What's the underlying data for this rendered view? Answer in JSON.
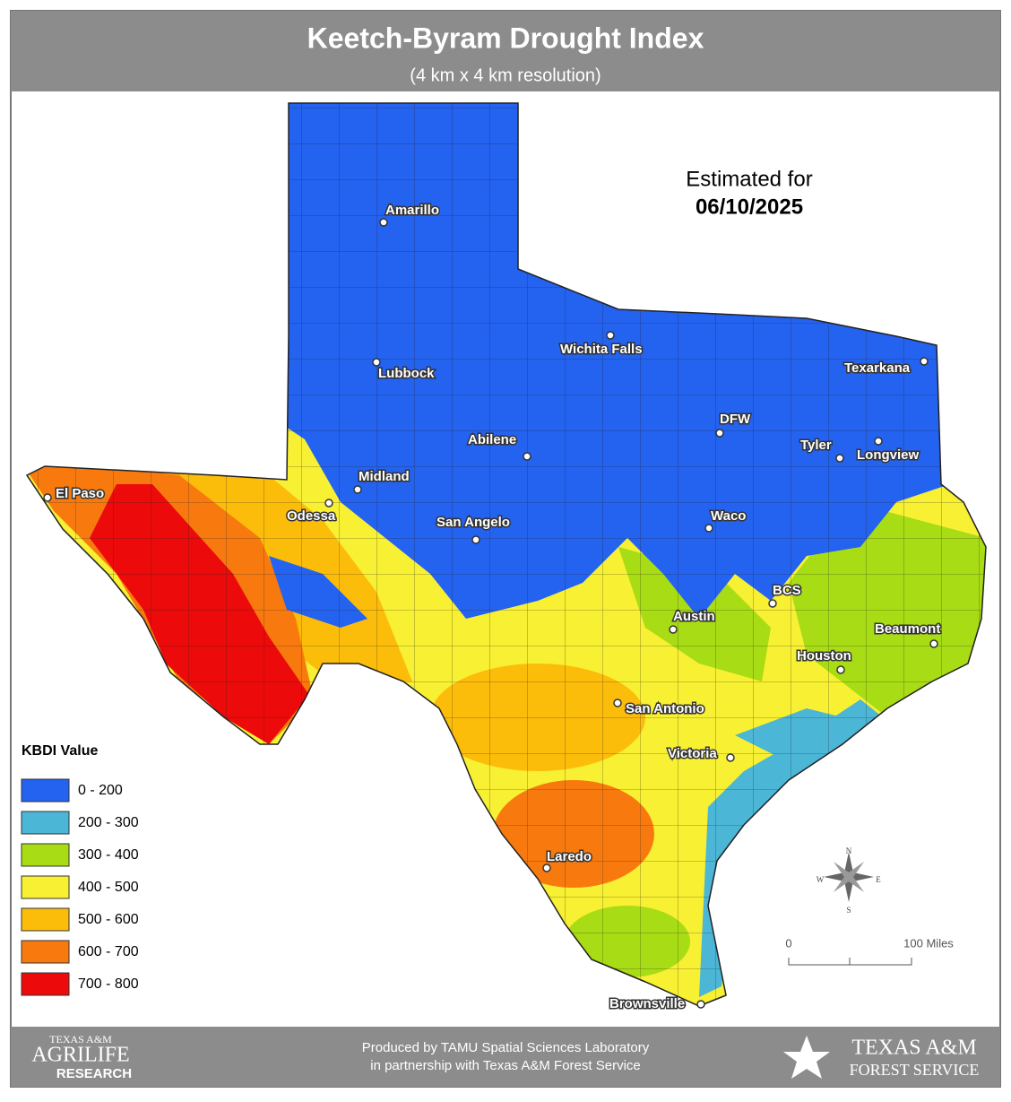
{
  "header": {
    "title": "Keetch-Byram Drought Index",
    "subtitle": "(4 km x 4 km resolution)"
  },
  "estimate": {
    "label": "Estimated for",
    "date": "06/10/2025"
  },
  "cities": [
    "Amarillo",
    "Lubbock",
    "Wichita Falls",
    "Texarkana",
    "DFW",
    "Tyler",
    "Longview",
    "Abilene",
    "Midland",
    "Odessa",
    "El Paso",
    "San Angelo",
    "Waco",
    "BCS",
    "Austin",
    "Beaumont",
    "Houston",
    "San Antonio",
    "Victoria",
    "Laredo",
    "Brownsville"
  ],
  "legend": {
    "title": "KBDI Value",
    "items": [
      {
        "label": "0 - 200",
        "color": "#2462f0"
      },
      {
        "label": "200 - 300",
        "color": "#4bb6d6"
      },
      {
        "label": "300 - 400",
        "color": "#a8dc14"
      },
      {
        "label": "400 - 500",
        "color": "#f8f032"
      },
      {
        "label": "500 - 600",
        "color": "#fcbc0a"
      },
      {
        "label": "600 - 700",
        "color": "#f87a0e"
      },
      {
        "label": "700 - 800",
        "color": "#ec0a0a"
      }
    ]
  },
  "scale": {
    "start": "0",
    "end": "100 Miles"
  },
  "compass": [
    "N",
    "E",
    "S",
    "W"
  ],
  "footer": {
    "left_logo": [
      "TEXAS A&M",
      "AGRILIFE",
      "RESEARCH"
    ],
    "credit": [
      "Produced by TAMU Spatial Sciences Laboratory",
      "in partnership with Texas A&M Forest Service"
    ],
    "right_logo": [
      "TEXAS A&M",
      "FOREST SERVICE"
    ]
  }
}
